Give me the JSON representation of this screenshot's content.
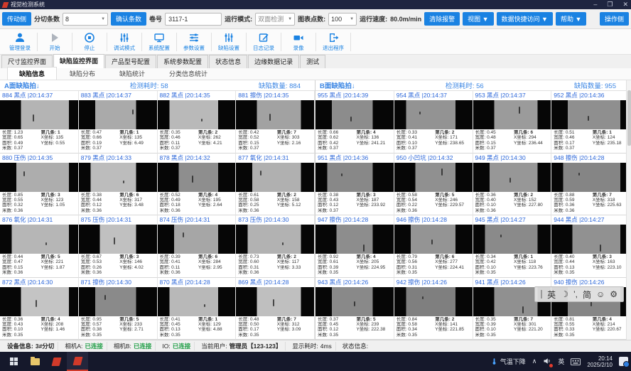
{
  "title_bar": {
    "app_title": "视觉检测系统",
    "minimize": "–",
    "maximize": "❐",
    "close": "✕"
  },
  "toolbar": {
    "side_button": "传动侧",
    "strip_count_label": "分切条数",
    "strip_count_value": "8",
    "confirm_button": "确认条数",
    "roll_label": "卷号",
    "roll_value": "3117-1",
    "run_mode_label": "运行模式:",
    "run_mode_value": "双面检测",
    "chart_points_label": "图表点数:",
    "chart_points_value": "100",
    "speed_label": "运行速度:",
    "speed_value": "80.0m/min",
    "clear_alarm_button": "清除报警",
    "view_menu": "视图 ▼",
    "data_menu": "数据快捷访问 ▼",
    "help_menu": "帮助 ▼",
    "operator_side_button": "操作侧"
  },
  "ribbon": {
    "buttons": [
      {
        "label": "管理登录",
        "icon": "user"
      },
      {
        "label": "开始",
        "icon": "play"
      },
      {
        "label": "停止",
        "icon": "stop"
      },
      {
        "label": "调试模式",
        "icon": "debug-sliders"
      },
      {
        "label": "系统配置",
        "icon": "monitor"
      },
      {
        "label": "参数设置",
        "icon": "tune"
      },
      {
        "label": "缺陷设置",
        "icon": "equalizer"
      },
      {
        "label": "日志记录",
        "icon": "log"
      },
      {
        "label": "录像",
        "icon": "camera"
      },
      {
        "label": "退出程序",
        "icon": "exit"
      }
    ]
  },
  "main_tabs": [
    "尺寸监控界面",
    "缺陷监控界面",
    "产品型号配置",
    "系统参数配置",
    "状态信息",
    "边缘数据记录",
    "测试"
  ],
  "sub_tabs": [
    "缺陷信息",
    "缺陷分布",
    "缺陷统计",
    "分类信息统计"
  ],
  "detail_labels": {
    "len": "长度:",
    "wid": "宽度:",
    "area": "面积:",
    "m": "米数:",
    "strip": "第几条:",
    "xc": "X坐标:",
    "yc": "Y坐标:"
  },
  "panels": [
    {
      "title": "A面缺陷拍↓",
      "elapsed_label": "检测耗时:",
      "elapsed": "58",
      "count_label": "缺陷数量:",
      "count": "884",
      "cells": [
        {
          "id": "884",
          "type": "黑点",
          "time": "20:14:37",
          "len": "1.23",
          "wid": "0.65",
          "area": "0.49",
          "m": "0.37",
          "strip": "1",
          "xc": "135",
          "yc": "0.55",
          "tone": "#b4b4b4"
        },
        {
          "id": "883",
          "type": "黑点",
          "time": "20:14:37",
          "len": "0.47",
          "wid": "0.66",
          "area": "0.19",
          "m": "0.37",
          "strip": "1",
          "xc": "135",
          "yc": "6.49",
          "tone": "#aaaaaa"
        },
        {
          "id": "882",
          "type": "黑点",
          "time": "20:14:35",
          "len": "0.35",
          "wid": "0.46",
          "area": "0.11",
          "m": "0.37",
          "strip": "2",
          "xc": "262",
          "yc": "4.21",
          "tone": "#b9b9b9"
        },
        {
          "id": "881",
          "type": "擦伤",
          "time": "20:14:35",
          "len": "0.42",
          "wid": "0.52",
          "area": "0.15",
          "m": "0.37",
          "strip": "7",
          "xc": "303",
          "yc": "2.16",
          "tone": "#a2a2a2"
        },
        {
          "id": "880",
          "type": "压伤",
          "time": "20:14:35",
          "len": "0.85",
          "wid": "0.55",
          "area": "0.32",
          "m": "0.36",
          "strip": "3",
          "xc": "123",
          "yc": "1.05",
          "tone": "#adadad"
        },
        {
          "id": "879",
          "type": "黑点",
          "time": "20:14:33",
          "len": "0.38",
          "wid": "0.44",
          "area": "0.12",
          "m": "0.36",
          "strip": "6",
          "xc": "317",
          "yc": "3.48",
          "tone": "#bcbcbc"
        },
        {
          "id": "878",
          "type": "黑点",
          "time": "20:14:32",
          "len": "0.52",
          "wid": "0.49",
          "area": "0.18",
          "m": "0.36",
          "strip": "4",
          "xc": "195",
          "yc": "2.64",
          "tone": "#8e8e8e"
        },
        {
          "id": "877",
          "type": "氧化",
          "time": "20:14:31",
          "len": "0.61",
          "wid": "0.58",
          "area": "0.25",
          "m": "0.36",
          "strip": "2",
          "xc": "158",
          "yc": "5.12",
          "tone": "#b0b0b0"
        },
        {
          "id": "876",
          "type": "氧化",
          "time": "20:14:31",
          "len": "0.44",
          "wid": "0.47",
          "area": "0.15",
          "m": "0.36",
          "strip": "5",
          "xc": "221",
          "yc": "1.87",
          "tone": "#b6b6b6"
        },
        {
          "id": "875",
          "type": "压伤",
          "time": "20:14:31",
          "len": "0.67",
          "wid": "0.53",
          "area": "0.26",
          "m": "0.36",
          "strip": "3",
          "xc": "146",
          "yc": "4.02",
          "tone": "#c0c0c0"
        },
        {
          "id": "874",
          "type": "压伤",
          "time": "20:14:31",
          "len": "0.39",
          "wid": "0.41",
          "area": "0.11",
          "m": "0.36",
          "strip": "6",
          "xc": "284",
          "yc": "2.95",
          "tone": "#a6a6a6"
        },
        {
          "id": "873",
          "type": "压伤",
          "time": "20:14:30",
          "len": "0.73",
          "wid": "0.60",
          "area": "0.31",
          "m": "0.36",
          "strip": "2",
          "xc": "117",
          "yc": "3.33",
          "tone": "#b2b2b2"
        },
        {
          "id": "872",
          "type": "黑点",
          "time": "20:14:30",
          "len": "0.36",
          "wid": "0.43",
          "area": "0.10",
          "m": "0.35",
          "strip": "4",
          "xc": "208",
          "yc": "1.46",
          "tone": "#c4c4c4"
        },
        {
          "id": "871",
          "type": "擦伤",
          "time": "20:14:30",
          "len": "0.95",
          "wid": "0.57",
          "area": "0.38",
          "m": "0.35",
          "strip": "5",
          "xc": "233",
          "yc": "2.71",
          "tone": "#8a8a8a"
        },
        {
          "id": "870",
          "type": "黑点",
          "time": "20:14:28",
          "len": "0.41",
          "wid": "0.45",
          "area": "0.13",
          "m": "0.35",
          "strip": "1",
          "xc": "129",
          "yc": "4.88",
          "tone": "#b8b8b8"
        },
        {
          "id": "869",
          "type": "黑点",
          "time": "20:14:28",
          "len": "0.48",
          "wid": "0.50",
          "area": "0.17",
          "m": "0.35",
          "strip": "7",
          "xc": "312",
          "yc": "3.09",
          "tone": "#bfbfbf"
        }
      ]
    },
    {
      "title": "B面缺陷拍↓",
      "elapsed_label": "检测耗时:",
      "elapsed": "56",
      "count_label": "缺陷数量:",
      "count": "955",
      "cells": [
        {
          "id": "955",
          "type": "黑点",
          "time": "20:14:39",
          "len": "0.66",
          "wid": "0.62",
          "area": "0.42",
          "m": "0.37",
          "strip": "4",
          "xc": "136",
          "yc": "241.21",
          "tone": "#8c8c8c"
        },
        {
          "id": "954",
          "type": "黑点",
          "time": "20:14:37",
          "len": "0.33",
          "wid": "0.41",
          "area": "0.10",
          "m": "0.37",
          "strip": "2",
          "xc": "171",
          "yc": "238.65",
          "tone": "#939393"
        },
        {
          "id": "953",
          "type": "黑点",
          "time": "20:14:37",
          "len": "0.45",
          "wid": "0.48",
          "area": "0.15",
          "m": "0.37",
          "strip": "6",
          "xc": "294",
          "yc": "236.44",
          "tone": "#9b9b9b"
        },
        {
          "id": "952",
          "type": "黑点",
          "time": "20:14:36",
          "len": "0.51",
          "wid": "0.46",
          "area": "0.17",
          "m": "0.37",
          "strip": "1",
          "xc": "124",
          "yc": "235.18",
          "tone": "#8f8f8f"
        },
        {
          "id": "951",
          "type": "黑点",
          "time": "20:14:36",
          "len": "0.38",
          "wid": "0.43",
          "area": "0.12",
          "m": "0.37",
          "strip": "3",
          "xc": "187",
          "yc": "233.92",
          "tone": "#888888"
        },
        {
          "id": "950",
          "type": "小凹坑",
          "time": "20:14:32",
          "len": "0.58",
          "wid": "0.54",
          "area": "0.22",
          "m": "0.36",
          "strip": "5",
          "xc": "246",
          "yc": "229.57",
          "tone": "#909090"
        },
        {
          "id": "949",
          "type": "黑点",
          "time": "20:14:30",
          "len": "0.36",
          "wid": "0.40",
          "area": "0.10",
          "m": "0.36",
          "strip": "2",
          "xc": "152",
          "yc": "227.80",
          "tone": "#979797"
        },
        {
          "id": "948",
          "type": "擦伤",
          "time": "20:14:28",
          "len": "0.88",
          "wid": "0.59",
          "area": "0.36",
          "m": "0.36",
          "strip": "7",
          "xc": "318",
          "yc": "225.63",
          "tone": "#858585"
        },
        {
          "id": "947",
          "type": "擦伤",
          "time": "20:14:28",
          "len": "0.92",
          "wid": "0.61",
          "area": "0.39",
          "m": "0.35",
          "strip": "4",
          "xc": "205",
          "yc": "224.95",
          "tone": "#8d8d8d"
        },
        {
          "id": "946",
          "type": "擦伤",
          "time": "20:14:28",
          "len": "0.79",
          "wid": "0.56",
          "area": "0.31",
          "m": "0.35",
          "strip": "6",
          "xc": "277",
          "yc": "224.41",
          "tone": "#949494"
        },
        {
          "id": "945",
          "type": "黑点",
          "time": "20:14:27",
          "len": "0.34",
          "wid": "0.42",
          "area": "0.10",
          "m": "0.35",
          "strip": "1",
          "xc": "118",
          "yc": "223.76",
          "tone": "#8a8a8a"
        },
        {
          "id": "944",
          "type": "黑点",
          "time": "20:14:27",
          "len": "0.40",
          "wid": "0.44",
          "area": "0.13",
          "m": "0.35",
          "strip": "3",
          "xc": "163",
          "yc": "223.10",
          "tone": "#919191"
        },
        {
          "id": "943",
          "type": "黑点",
          "time": "20:14:26",
          "len": "0.37",
          "wid": "0.45",
          "area": "0.12",
          "m": "0.35",
          "strip": "5",
          "xc": "239",
          "yc": "222.38",
          "tone": "#898989"
        },
        {
          "id": "942",
          "type": "擦伤",
          "time": "20:14:26",
          "len": "0.84",
          "wid": "0.58",
          "area": "0.34",
          "m": "0.35",
          "strip": "2",
          "xc": "141",
          "yc": "221.85",
          "tone": "#7f7f7f"
        },
        {
          "id": "941",
          "type": "黑点",
          "time": "20:14:26",
          "len": "0.35",
          "wid": "0.39",
          "area": "0.10",
          "m": "0.35",
          "strip": "7",
          "xc": "301",
          "yc": "221.20",
          "tone": "#909090"
        },
        {
          "id": "940",
          "type": "擦伤",
          "time": "20:14:26",
          "len": "0.81",
          "wid": "0.55",
          "area": "0.33",
          "m": "0.35",
          "strip": "4",
          "xc": "214",
          "yc": "220.67",
          "tone": "#868686"
        }
      ]
    }
  ],
  "ime_bar": {
    "items": [
      "英",
      "☽",
      "’,",
      "简",
      "☺",
      "⚙"
    ]
  },
  "status_bar": {
    "device_label": "设备信息:",
    "device": "3#分切",
    "camA_label": "相机A:",
    "camB_label": "相机B:",
    "io_label": "IO:",
    "connected": "已连接",
    "user_label": "当前用户:",
    "user": "管理员【123-123】",
    "display_label": "显示耗时:",
    "display": "4ms",
    "status_label": "状态信息:"
  },
  "taskbar": {
    "weather": "气温下降",
    "tray_expand": "∧",
    "ime_lang": "英",
    "time": "20:14",
    "date": "2025/2/10"
  }
}
